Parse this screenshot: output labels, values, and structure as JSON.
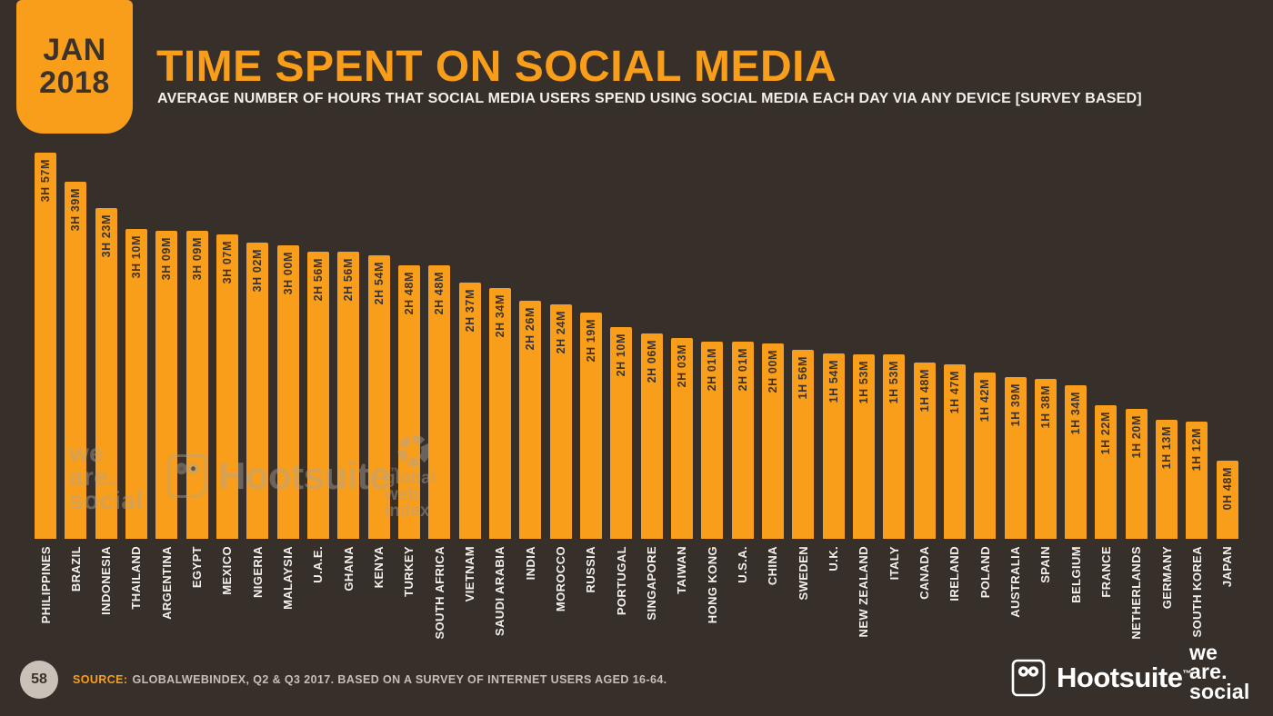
{
  "page": {
    "badge": {
      "line1": "JAN",
      "line2": "2018"
    },
    "title": "TIME SPENT ON SOCIAL MEDIA",
    "subtitle": "AVERAGE NUMBER OF HOURS THAT SOCIAL MEDIA USERS SPEND USING SOCIAL MEDIA EACH DAY VIA ANY DEVICE [SURVEY BASED]",
    "watermarks": {
      "we_are_social": [
        "we",
        "are.",
        "social"
      ],
      "hootsuite": "Hootsuite",
      "hootsuite_tm": "™",
      "gwi": [
        "global",
        "web",
        "index"
      ]
    },
    "footer": {
      "page_number": "58",
      "source_label": "SOURCE:",
      "source_text": "GLOBALWEBINDEX, Q2 & Q3 2017. BASED ON A SURVEY OF INTERNET USERS AGED 16-64.",
      "hootsuite_logo": "Hootsuite",
      "hootsuite_tm": "™",
      "we_are_social": [
        "we",
        "are.",
        "social"
      ]
    },
    "colors": {
      "background": "#37302A",
      "bar": "#F99E1B",
      "accent_orange": "#F99E1B",
      "bar_value_text": "#3B332B",
      "country_text": "#FFFFFF",
      "page_circle": "#C9C2B9"
    }
  },
  "chart_data": {
    "type": "bar",
    "title": "TIME SPENT ON SOCIAL MEDIA",
    "subtitle": "AVERAGE NUMBER OF HOURS THAT SOCIAL MEDIA USERS SPEND USING SOCIAL MEDIA EACH DAY VIA ANY DEVICE [SURVEY BASED]",
    "xlabel": "country",
    "ylabel": "time spent per day (hours and minutes)",
    "grid": false,
    "legend": false,
    "ylim_minutes": [
      0,
      237
    ],
    "categories": [
      "PHILIPPINES",
      "BRAZIL",
      "INDONESIA",
      "THAILAND",
      "ARGENTINA",
      "EGYPT",
      "MEXICO",
      "NIGERIA",
      "MALAYSIA",
      "U.A.E.",
      "GHANA",
      "KENYA",
      "TURKEY",
      "SOUTH AFRICA",
      "VIETNAM",
      "SAUDI ARABIA",
      "INDIA",
      "MOROCCO",
      "RUSSIA",
      "PORTUGAL",
      "SINGAPORE",
      "TAIWAN",
      "HONG KONG",
      "U.S.A.",
      "CHINA",
      "SWEDEN",
      "U.K.",
      "NEW ZEALAND",
      "ITALY",
      "CANADA",
      "IRELAND",
      "POLAND",
      "AUSTRALIA",
      "SPAIN",
      "BELGIUM",
      "FRANCE",
      "NETHERLANDS",
      "GERMANY",
      "SOUTH KOREA",
      "JAPAN"
    ],
    "value_labels": [
      "3H 57M",
      "3H 39M",
      "3H 23M",
      "3H 10M",
      "3H 09M",
      "3H 09M",
      "3H 07M",
      "3H 02M",
      "3H 00M",
      "2H 56M",
      "2H 56M",
      "2H 54M",
      "2H 48M",
      "2H 48M",
      "2H 37M",
      "2H 34M",
      "2H 26M",
      "2H 24M",
      "2H 19M",
      "2H 10M",
      "2H 06M",
      "2H 03M",
      "2H 01M",
      "2H 01M",
      "2H 00M",
      "1H 56M",
      "1H 54M",
      "1H 53M",
      "1H 53M",
      "1H 48M",
      "1H 47M",
      "1H 42M",
      "1H 39M",
      "1H 38M",
      "1H 34M",
      "1H 22M",
      "1H 20M",
      "1H 13M",
      "1H 12M",
      "0H 48M"
    ],
    "values_minutes": [
      237,
      219,
      203,
      190,
      189,
      189,
      187,
      182,
      180,
      176,
      176,
      174,
      168,
      168,
      157,
      154,
      146,
      144,
      139,
      130,
      126,
      123,
      121,
      121,
      120,
      116,
      114,
      113,
      113,
      108,
      107,
      102,
      99,
      98,
      94,
      82,
      80,
      73,
      72,
      48
    ]
  }
}
